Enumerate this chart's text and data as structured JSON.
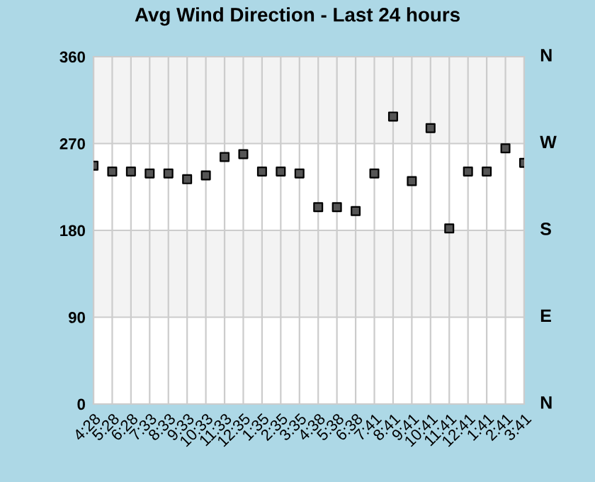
{
  "chart_data": {
    "type": "scatter",
    "title": "Avg Wind Direction - Last 24 hours",
    "categories": [
      "4:28",
      "5:28",
      "6:28",
      "7:33",
      "8:33",
      "9:33",
      "10:33",
      "11:33",
      "12:35",
      "1:35",
      "2:35",
      "3:35",
      "4:38",
      "5:38",
      "6:38",
      "7:41",
      "8:41",
      "9:41",
      "10:41",
      "11:41",
      "12:41",
      "1:41",
      "2:41",
      "3:41"
    ],
    "series": [
      {
        "color": "#555555",
        "values": [
          247,
          241,
          241,
          239,
          239,
          233,
          237,
          256,
          259,
          241,
          241,
          239,
          204,
          204,
          200,
          239,
          298,
          231,
          286,
          182,
          241,
          241,
          265,
          250
        ]
      }
    ],
    "ylim": [
      0,
      360
    ],
    "yticks": [
      0,
      90,
      180,
      270,
      360
    ],
    "annotations": [
      "N",
      "E",
      "S",
      "W",
      "N"
    ],
    "bands": [
      {
        "axis": "y",
        "from": 90,
        "to": 180,
        "color": "#f3f3f3"
      },
      {
        "axis": "y",
        "from": 270,
        "to": 360,
        "color": "#f3f3f3"
      }
    ],
    "grid": true,
    "marker": "square",
    "legend": false
  }
}
